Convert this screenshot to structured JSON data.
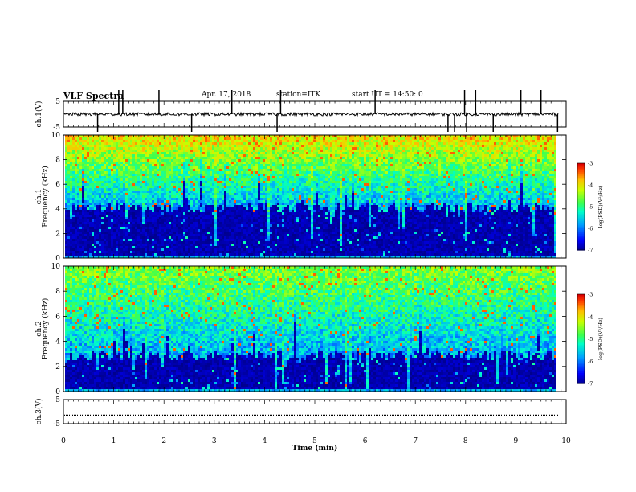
{
  "header": {
    "title": "VLF Spectra",
    "date": "Apr. 17, 2018",
    "station": "station=ITK",
    "start": "start UT = 14:50: 0"
  },
  "chart_data": [
    {
      "type": "line",
      "name": "waveform-ch1",
      "ylabel": "ch.1(V)",
      "ylim": [
        -5,
        5
      ],
      "yticks": [
        "5",
        "-5"
      ],
      "xlim": [
        0,
        10
      ],
      "baseline": 0,
      "noise_amplitude": 0.6,
      "spikes_x": [
        0.68,
        1.1,
        1.18,
        1.9,
        2.55,
        3.35,
        4.25,
        4.32,
        6.2,
        7.65,
        7.78,
        7.98,
        8.02,
        8.2,
        8.55,
        9.1,
        9.5,
        9.83
      ]
    },
    {
      "type": "heatmap",
      "name": "spectrogram-ch1",
      "ylabel_line1": "ch.1",
      "ylabel_line2": "Frequency (kHz)",
      "ylim": [
        0,
        10
      ],
      "yticks": [
        "0",
        "2",
        "4",
        "6",
        "8",
        "10"
      ],
      "xlim": [
        0,
        9.8
      ],
      "noise_floor_khz": 4.2,
      "colorbar": {
        "label": "log(PSD)(V²/Hz)",
        "ticks": [
          "-3",
          "-4",
          "-5",
          "-6",
          "-7"
        ],
        "range": [
          -7,
          -3
        ]
      }
    },
    {
      "type": "heatmap",
      "name": "spectrogram-ch2",
      "ylabel_line1": "ch.2",
      "ylabel_line2": "Frequency (kHz)",
      "ylim": [
        0,
        10
      ],
      "yticks": [
        "0",
        "2",
        "4",
        "6",
        "8",
        "10"
      ],
      "xlim": [
        0,
        9.8
      ],
      "noise_floor_khz": 3.0,
      "colorbar": {
        "label": "log(PSD)(V²/Hz)",
        "ticks": [
          "-3",
          "-4",
          "-5",
          "-6",
          "-7"
        ],
        "range": [
          -7,
          -3
        ]
      }
    },
    {
      "type": "line",
      "name": "waveform-ch3",
      "ylabel": "ch.3(V)",
      "ylim": [
        -5,
        5
      ],
      "yticks": [
        "5",
        "-5"
      ],
      "xlim": [
        0,
        10
      ],
      "baseline": -1.5
    }
  ],
  "xaxis": {
    "label": "Time (min)",
    "ticks": [
      "0",
      "1",
      "2",
      "3",
      "4",
      "5",
      "6",
      "7",
      "8",
      "9",
      "10"
    ]
  }
}
